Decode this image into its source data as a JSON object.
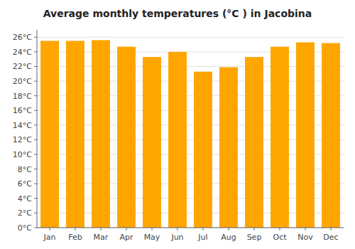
{
  "chart_data": {
    "type": "bar",
    "title": "Average monthly temperatures (°C ) in Jacobina",
    "categories": [
      "Jan",
      "Feb",
      "Mar",
      "Apr",
      "May",
      "Jun",
      "Jul",
      "Aug",
      "Sep",
      "Oct",
      "Nov",
      "Dec"
    ],
    "values": [
      25.5,
      25.5,
      25.6,
      24.7,
      23.3,
      24.0,
      21.3,
      21.9,
      23.3,
      24.7,
      25.3,
      25.2
    ],
    "color": "#FFA500",
    "ylim": [
      0,
      27
    ],
    "yticks": [
      {
        "value": 0,
        "label": "0°C"
      },
      {
        "value": 2,
        "label": "2°C"
      },
      {
        "value": 4,
        "label": "4°C"
      },
      {
        "value": 6,
        "label": "6°C"
      },
      {
        "value": 8,
        "label": "8°C"
      },
      {
        "value": 10,
        "label": "10°C"
      },
      {
        "value": 12,
        "label": "12°C"
      },
      {
        "value": 14,
        "label": "14°C"
      },
      {
        "value": 16,
        "label": "16°C"
      },
      {
        "value": 18,
        "label": "18°C"
      },
      {
        "value": 20,
        "label": "20°C"
      },
      {
        "value": 22,
        "label": "22°C"
      },
      {
        "value": 24,
        "label": "24°C"
      },
      {
        "value": 26,
        "label": "26°C"
      }
    ],
    "grid": true
  }
}
